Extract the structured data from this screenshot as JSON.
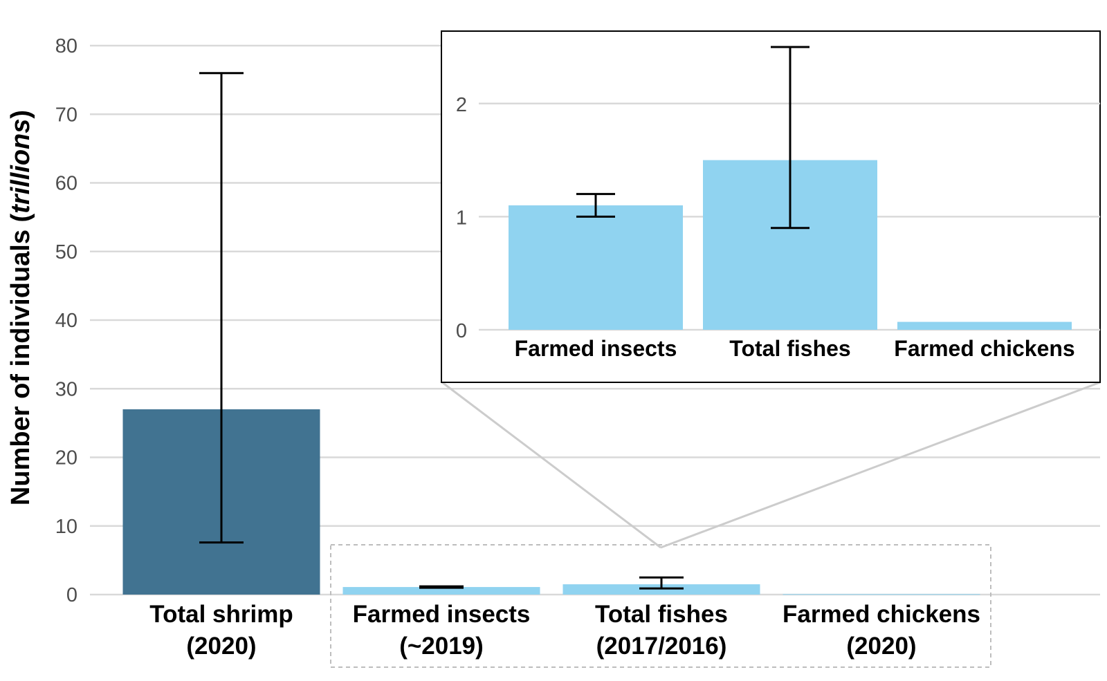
{
  "chart_data": [
    {
      "type": "bar",
      "title": "",
      "ylabel": {
        "prefix": "Number of individuals (",
        "emphasis": "trillions",
        "suffix": ")"
      },
      "ylim": [
        0,
        80
      ],
      "yticks": [
        0,
        10,
        20,
        30,
        40,
        50,
        60,
        70,
        80
      ],
      "categories": [
        {
          "line1": "Total shrimp",
          "line2": "(2020)"
        },
        {
          "line1": "Farmed insects",
          "line2": "(~2019)"
        },
        {
          "line1": "Total fishes",
          "line2": "(2017/2016)"
        },
        {
          "line1": "Farmed chickens",
          "line2": "(2020)"
        }
      ],
      "values": [
        27,
        1.1,
        1.5,
        0.07
      ],
      "error_low": [
        7.6,
        1.0,
        0.9,
        null
      ],
      "error_high": [
        76,
        1.2,
        2.5,
        null
      ],
      "colors": [
        "#417391",
        "#90d3f0",
        "#90d3f0",
        "#90d3f0"
      ],
      "zoom_box_categories": [
        "Farmed insects",
        "Total fishes",
        "Farmed chickens"
      ]
    },
    {
      "type": "bar",
      "role": "inset",
      "ylim": [
        0,
        2.5
      ],
      "yticks": [
        0,
        1,
        2
      ],
      "categories": [
        "Farmed insects",
        "Total fishes",
        "Farmed chickens"
      ],
      "values": [
        1.1,
        1.5,
        0.07
      ],
      "error_low": [
        1.0,
        0.9,
        null
      ],
      "error_high": [
        1.2,
        2.5,
        null
      ],
      "colors": [
        "#90d3f0",
        "#90d3f0",
        "#90d3f0"
      ]
    }
  ],
  "colors": {
    "grid": "#d9d9d9",
    "tick_text": "#4d4d4d",
    "zoom_box": "#bdbdbd",
    "connector": "#cccccc"
  }
}
